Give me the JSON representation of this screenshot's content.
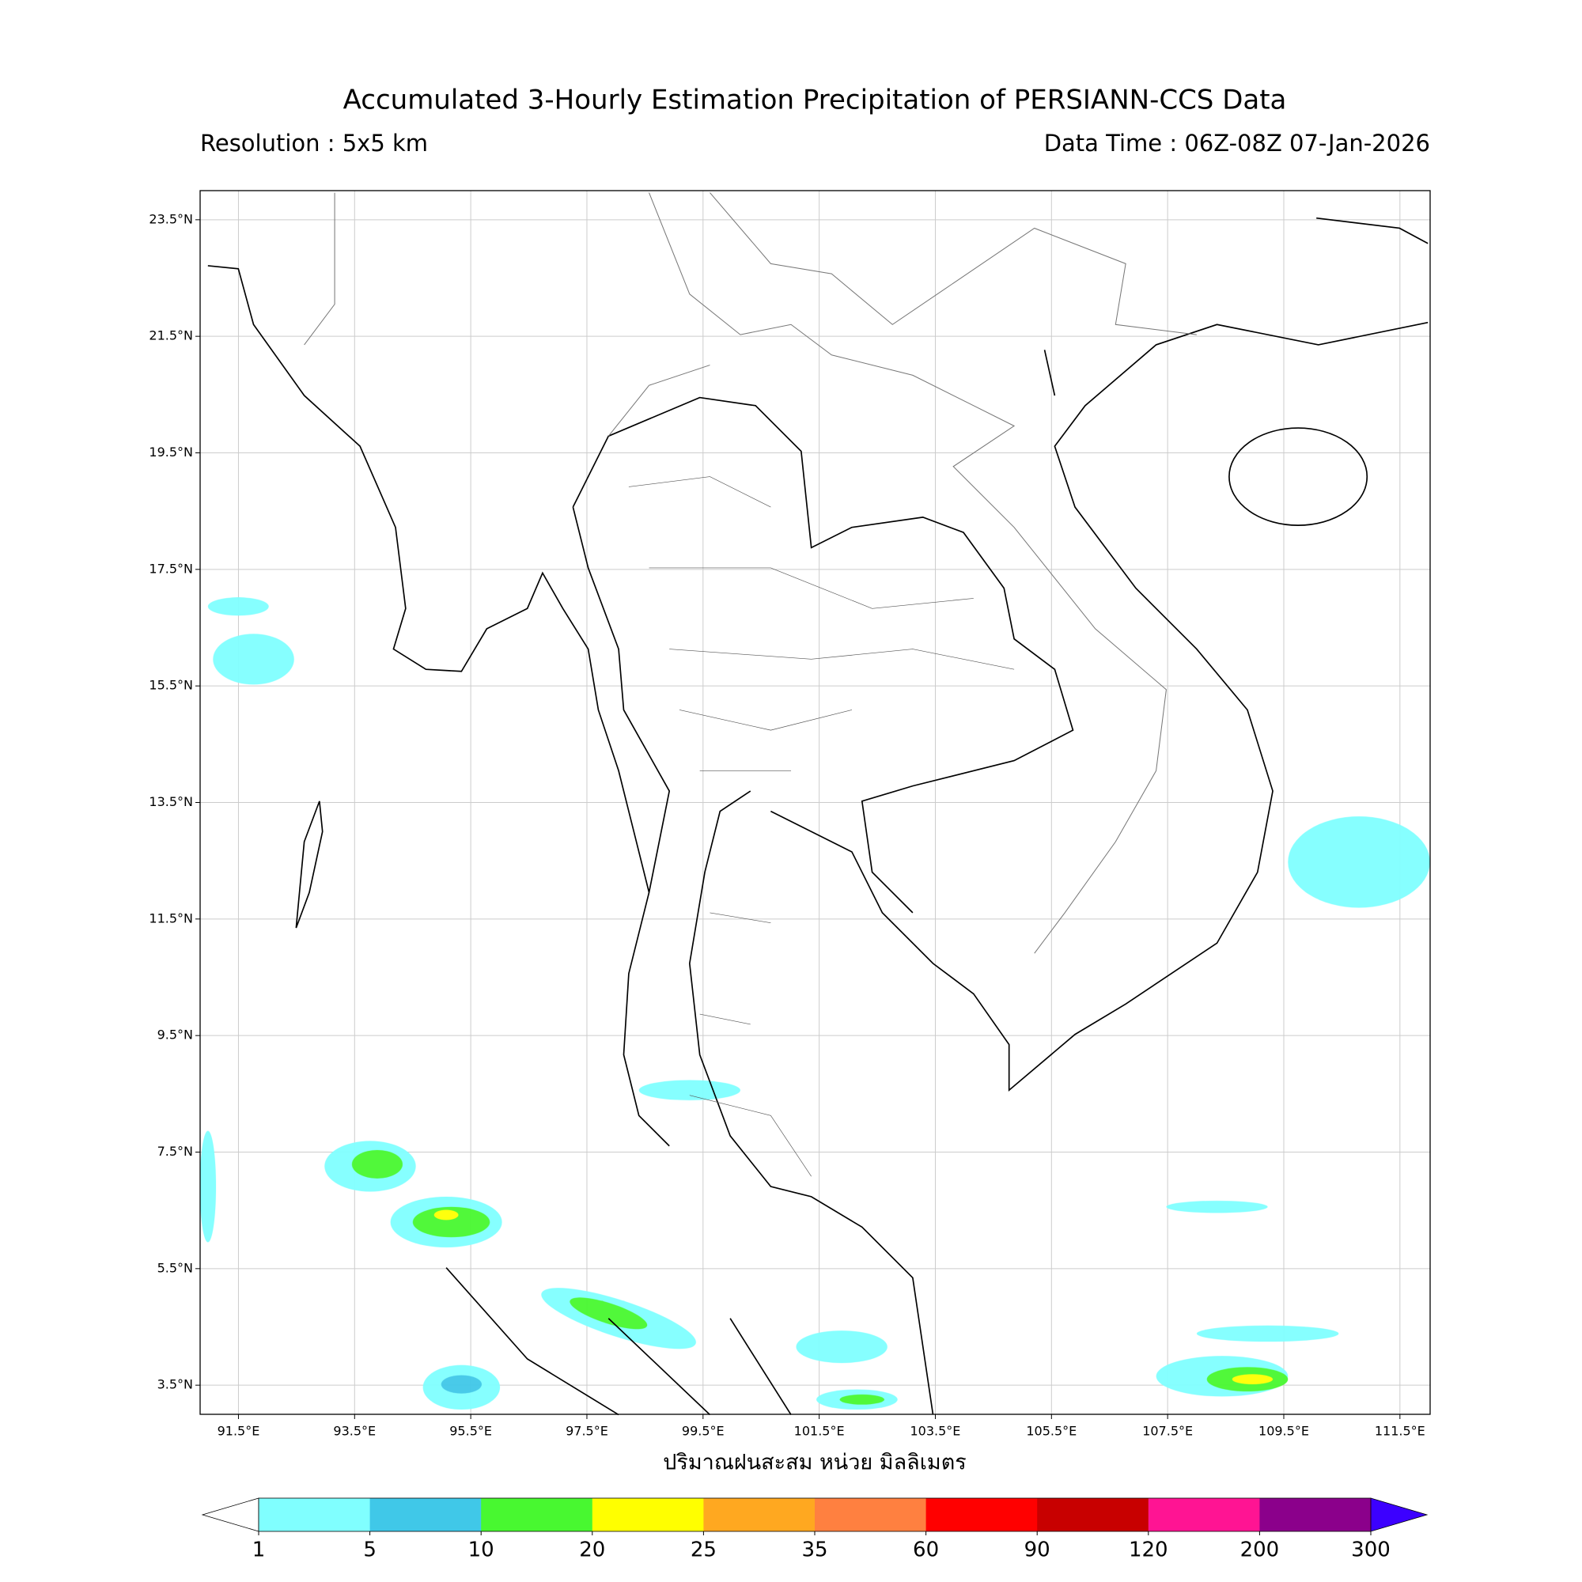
{
  "header": {
    "title": "Accumulated 3-Hourly Estimation Precipitation of PERSIANN-CCS Data",
    "resolution": "Resolution : 5x5 km",
    "data_time": "Data Time : 06Z-08Z 07-Jan-2026"
  },
  "map": {
    "xlim": [
      90.84,
      112.02
    ],
    "ylim": [
      3.0,
      24.0
    ],
    "xticks": [
      {
        "value": 91.5,
        "label": "91.5°E"
      },
      {
        "value": 93.5,
        "label": "93.5°E"
      },
      {
        "value": 95.5,
        "label": "95.5°E"
      },
      {
        "value": 97.5,
        "label": "97.5°E"
      },
      {
        "value": 99.5,
        "label": "99.5°E"
      },
      {
        "value": 101.5,
        "label": "101.5°E"
      },
      {
        "value": 103.5,
        "label": "103.5°E"
      },
      {
        "value": 105.5,
        "label": "105.5°E"
      },
      {
        "value": 107.5,
        "label": "107.5°E"
      },
      {
        "value": 109.5,
        "label": "109.5°E"
      },
      {
        "value": 111.5,
        "label": "111.5°E"
      }
    ],
    "yticks": [
      {
        "value": 23.5,
        "label": "23.5°N"
      },
      {
        "value": 21.5,
        "label": "21.5°N"
      },
      {
        "value": 19.5,
        "label": "19.5°N"
      },
      {
        "value": 17.5,
        "label": "17.5°N"
      },
      {
        "value": 15.5,
        "label": "15.5°N"
      },
      {
        "value": 13.5,
        "label": "13.5°N"
      },
      {
        "value": 11.5,
        "label": "11.5°N"
      },
      {
        "value": 9.5,
        "label": "9.5°N"
      },
      {
        "value": 7.5,
        "label": "7.5°N"
      },
      {
        "value": 5.5,
        "label": "5.5°N"
      },
      {
        "value": 3.5,
        "label": "3.5°N"
      }
    ],
    "grid": true,
    "xlabel": "ปริมาณฝนสะสม หน่วย มิลลิเมตร"
  },
  "colorbar": {
    "levels": [
      1,
      5,
      10,
      20,
      25,
      35,
      60,
      90,
      120,
      200,
      300
    ],
    "colors": [
      "#80ffff",
      "#40c8e8",
      "#48f830",
      "#ffff00",
      "#ffa820",
      "#ff8040",
      "#ff0000",
      "#c80000",
      "#ff1493",
      "#8b008b"
    ],
    "under_color": "#ffffff",
    "over_color": "#3c00ff"
  }
}
